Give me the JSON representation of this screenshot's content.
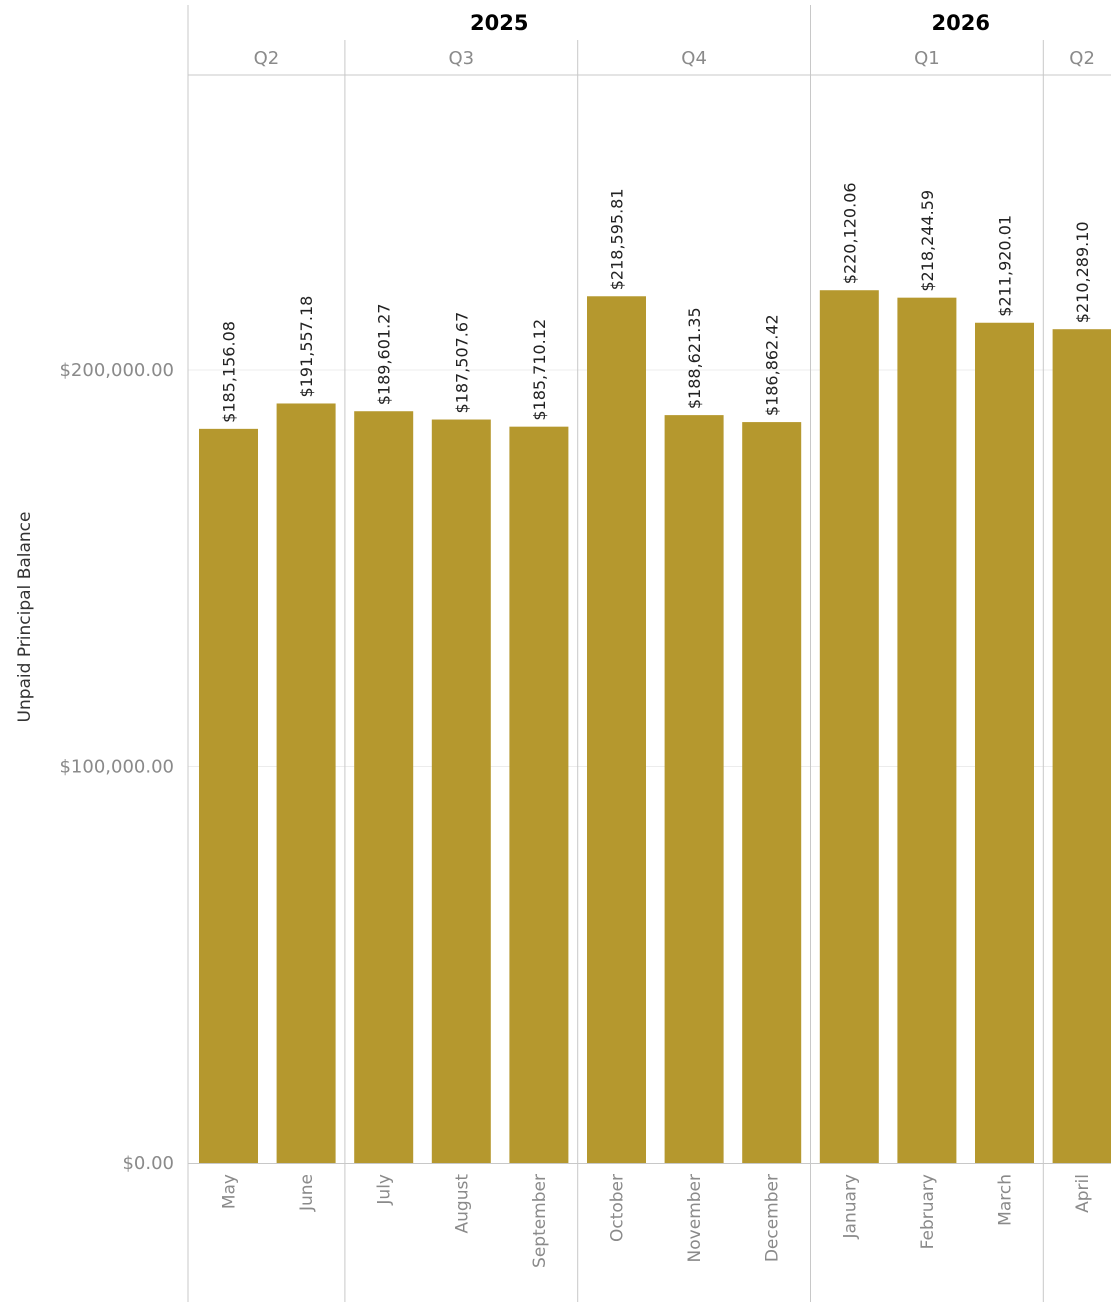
{
  "chart_data": {
    "type": "bar",
    "ylabel": "Unpaid Principal Balance",
    "ylim": [
      0,
      280000
    ],
    "yticks": [
      {
        "value": 0,
        "label": "$0.00"
      },
      {
        "value": 100000,
        "label": "$100,000.00"
      },
      {
        "value": 200000,
        "label": "$200,000.00"
      }
    ],
    "years": [
      {
        "label": "2025",
        "months": 8
      },
      {
        "label": "2026",
        "months": 4
      }
    ],
    "quarters": [
      {
        "label": "Q2",
        "months": 2
      },
      {
        "label": "Q3",
        "months": 3
      },
      {
        "label": "Q4",
        "months": 3
      },
      {
        "label": "Q1",
        "months": 3
      },
      {
        "label": "Q2",
        "months": 1
      }
    ],
    "categories": [
      "May",
      "June",
      "July",
      "August",
      "September",
      "October",
      "November",
      "December",
      "January",
      "February",
      "March",
      "April"
    ],
    "values": [
      185156.08,
      191557.18,
      189601.27,
      187507.67,
      185710.12,
      218595.81,
      188621.35,
      186862.42,
      220120.06,
      218244.59,
      211920.01,
      210289.1
    ],
    "data_labels": [
      "$185,156.08",
      "$191,557.18",
      "$189,601.27",
      "$187,507.67",
      "$185,710.12",
      "$218,595.81",
      "$188,621.35",
      "$186,862.42",
      "$220,120.06",
      "$218,244.59",
      "$211,920.01",
      "$210,289.10"
    ],
    "bar_color": "#B5982E",
    "grid": true
  }
}
